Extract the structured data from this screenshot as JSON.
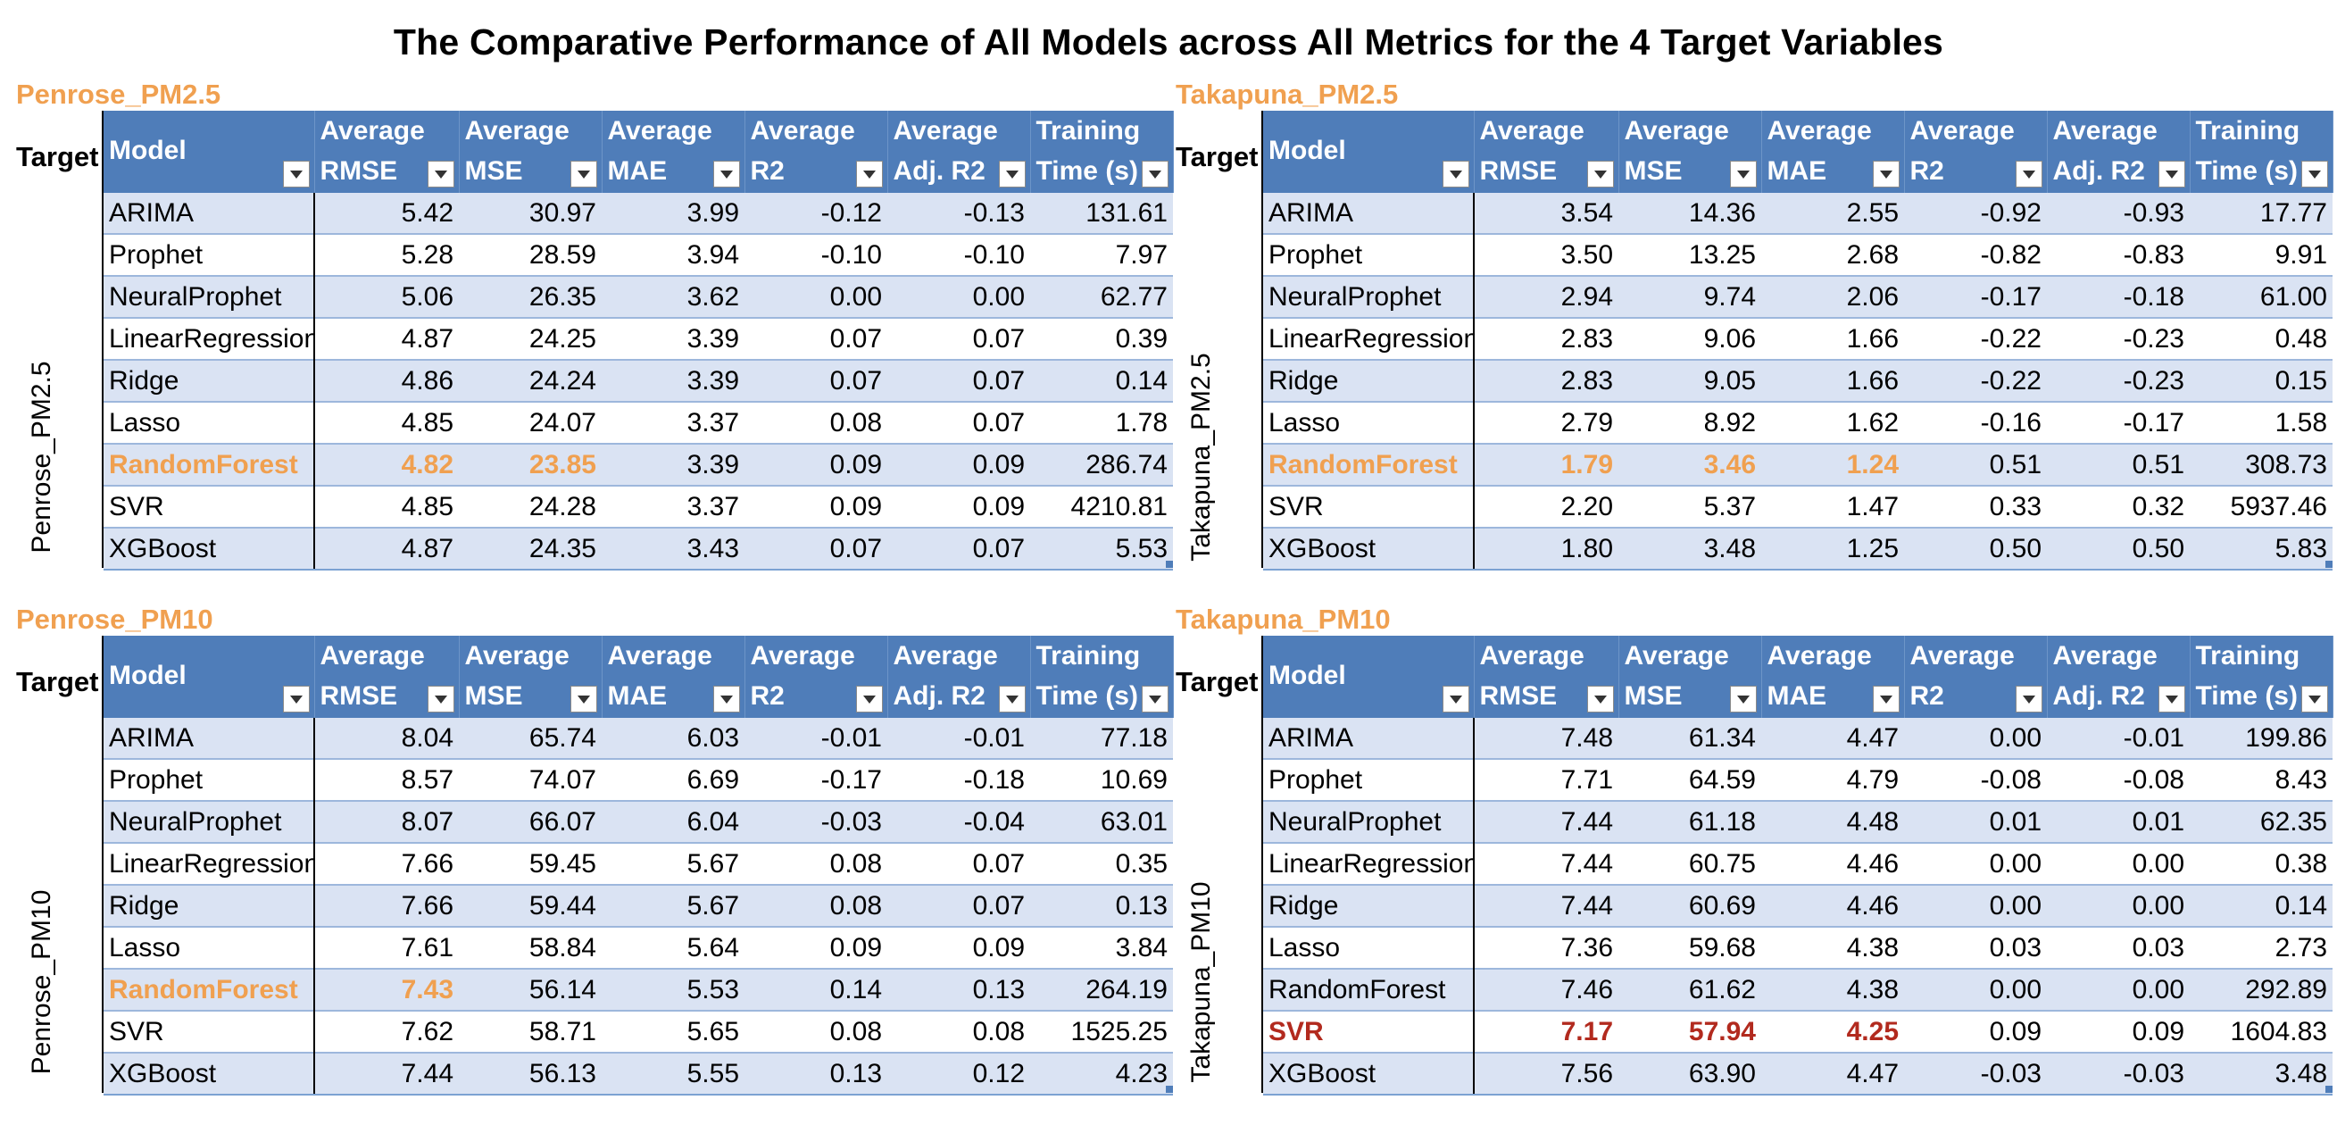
{
  "title": "The Comparative Performance of All Models across All Metrics for the 4 Target Variables",
  "columns": {
    "target": "Target",
    "model": "Model",
    "metrics": [
      {
        "l1": "Average",
        "l2": "RMSE"
      },
      {
        "l1": "Average",
        "l2": "MSE"
      },
      {
        "l1": "Average",
        "l2": "MAE"
      },
      {
        "l1": "Average",
        "l2": "R2"
      },
      {
        "l1": "Average",
        "l2": "Adj. R2"
      },
      {
        "l1": "Training",
        "l2": "Time (s)"
      }
    ]
  },
  "highlight_colors": {
    "orange": "#F0A050",
    "red": "#B22A1E",
    "header_blue": "#4F7DB9",
    "band_blue": "#DAE3F3"
  },
  "panels": [
    {
      "name": "Penrose_PM2.5",
      "target_label": "Penrose_PM2.5",
      "rows": [
        {
          "model": "ARIMA",
          "vals": [
            "5.42",
            "30.97",
            "3.99",
            "-0.12",
            "-0.13",
            "131.61"
          ]
        },
        {
          "model": "Prophet",
          "vals": [
            "5.28",
            "28.59",
            "3.94",
            "-0.10",
            "-0.10",
            "7.97"
          ]
        },
        {
          "model": "NeuralProphet",
          "vals": [
            "5.06",
            "26.35",
            "3.62",
            "0.00",
            "0.00",
            "62.77"
          ]
        },
        {
          "model": "LinearRegression",
          "vals": [
            "4.87",
            "24.25",
            "3.39",
            "0.07",
            "0.07",
            "0.39"
          ]
        },
        {
          "model": "Ridge",
          "vals": [
            "4.86",
            "24.24",
            "3.39",
            "0.07",
            "0.07",
            "0.14"
          ]
        },
        {
          "model": "Lasso",
          "vals": [
            "4.85",
            "24.07",
            "3.37",
            "0.08",
            "0.07",
            "1.78"
          ]
        },
        {
          "model": "RandomForest",
          "vals": [
            "4.82",
            "23.85",
            "3.39",
            "0.09",
            "0.09",
            "286.74"
          ],
          "highlight": "orange",
          "hl_cols": [
            0,
            1
          ]
        },
        {
          "model": "SVR",
          "vals": [
            "4.85",
            "24.28",
            "3.37",
            "0.09",
            "0.09",
            "4210.81"
          ]
        },
        {
          "model": "XGBoost",
          "vals": [
            "4.87",
            "24.35",
            "3.43",
            "0.07",
            "0.07",
            "5.53"
          ]
        }
      ]
    },
    {
      "name": "Takapuna_PM2.5",
      "target_label": "Takapuna_PM2.5",
      "rows": [
        {
          "model": "ARIMA",
          "vals": [
            "3.54",
            "14.36",
            "2.55",
            "-0.92",
            "-0.93",
            "17.77"
          ]
        },
        {
          "model": "Prophet",
          "vals": [
            "3.50",
            "13.25",
            "2.68",
            "-0.82",
            "-0.83",
            "9.91"
          ]
        },
        {
          "model": "NeuralProphet",
          "vals": [
            "2.94",
            "9.74",
            "2.06",
            "-0.17",
            "-0.18",
            "61.00"
          ]
        },
        {
          "model": "LinearRegression",
          "vals": [
            "2.83",
            "9.06",
            "1.66",
            "-0.22",
            "-0.23",
            "0.48"
          ]
        },
        {
          "model": "Ridge",
          "vals": [
            "2.83",
            "9.05",
            "1.66",
            "-0.22",
            "-0.23",
            "0.15"
          ]
        },
        {
          "model": "Lasso",
          "vals": [
            "2.79",
            "8.92",
            "1.62",
            "-0.16",
            "-0.17",
            "1.58"
          ]
        },
        {
          "model": "RandomForest",
          "vals": [
            "1.79",
            "3.46",
            "1.24",
            "0.51",
            "0.51",
            "308.73"
          ],
          "highlight": "orange",
          "hl_cols": [
            0,
            1,
            2
          ]
        },
        {
          "model": "SVR",
          "vals": [
            "2.20",
            "5.37",
            "1.47",
            "0.33",
            "0.32",
            "5937.46"
          ]
        },
        {
          "model": "XGBoost",
          "vals": [
            "1.80",
            "3.48",
            "1.25",
            "0.50",
            "0.50",
            "5.83"
          ]
        }
      ]
    },
    {
      "name": "Penrose_PM10",
      "target_label": "Penrose_PM10",
      "rows": [
        {
          "model": "ARIMA",
          "vals": [
            "8.04",
            "65.74",
            "6.03",
            "-0.01",
            "-0.01",
            "77.18"
          ]
        },
        {
          "model": "Prophet",
          "vals": [
            "8.57",
            "74.07",
            "6.69",
            "-0.17",
            "-0.18",
            "10.69"
          ]
        },
        {
          "model": "NeuralProphet",
          "vals": [
            "8.07",
            "66.07",
            "6.04",
            "-0.03",
            "-0.04",
            "63.01"
          ]
        },
        {
          "model": "LinearRegression",
          "vals": [
            "7.66",
            "59.45",
            "5.67",
            "0.08",
            "0.07",
            "0.35"
          ]
        },
        {
          "model": "Ridge",
          "vals": [
            "7.66",
            "59.44",
            "5.67",
            "0.08",
            "0.07",
            "0.13"
          ]
        },
        {
          "model": "Lasso",
          "vals": [
            "7.61",
            "58.84",
            "5.64",
            "0.09",
            "0.09",
            "3.84"
          ]
        },
        {
          "model": "RandomForest",
          "vals": [
            "7.43",
            "56.14",
            "5.53",
            "0.14",
            "0.13",
            "264.19"
          ],
          "highlight": "orange",
          "hl_cols": [
            0
          ]
        },
        {
          "model": "SVR",
          "vals": [
            "7.62",
            "58.71",
            "5.65",
            "0.08",
            "0.08",
            "1525.25"
          ]
        },
        {
          "model": "XGBoost",
          "vals": [
            "7.44",
            "56.13",
            "5.55",
            "0.13",
            "0.12",
            "4.23"
          ]
        }
      ]
    },
    {
      "name": "Takapuna_PM10",
      "target_label": "Takapuna_PM10",
      "rows": [
        {
          "model": "ARIMA",
          "vals": [
            "7.48",
            "61.34",
            "4.47",
            "0.00",
            "-0.01",
            "199.86"
          ]
        },
        {
          "model": "Prophet",
          "vals": [
            "7.71",
            "64.59",
            "4.79",
            "-0.08",
            "-0.08",
            "8.43"
          ]
        },
        {
          "model": "NeuralProphet",
          "vals": [
            "7.44",
            "61.18",
            "4.48",
            "0.01",
            "0.01",
            "62.35"
          ]
        },
        {
          "model": "LinearRegression",
          "vals": [
            "7.44",
            "60.75",
            "4.46",
            "0.00",
            "0.00",
            "0.38"
          ]
        },
        {
          "model": "Ridge",
          "vals": [
            "7.44",
            "60.69",
            "4.46",
            "0.00",
            "0.00",
            "0.14"
          ]
        },
        {
          "model": "Lasso",
          "vals": [
            "7.36",
            "59.68",
            "4.38",
            "0.03",
            "0.03",
            "2.73"
          ]
        },
        {
          "model": "RandomForest",
          "vals": [
            "7.46",
            "61.62",
            "4.38",
            "0.00",
            "0.00",
            "292.89"
          ]
        },
        {
          "model": "SVR",
          "vals": [
            "7.17",
            "57.94",
            "4.25",
            "0.09",
            "0.09",
            "1604.83"
          ],
          "highlight": "red",
          "hl_cols": [
            0,
            1,
            2
          ]
        },
        {
          "model": "XGBoost",
          "vals": [
            "7.56",
            "63.90",
            "4.47",
            "-0.03",
            "-0.03",
            "3.48"
          ]
        }
      ]
    }
  ]
}
